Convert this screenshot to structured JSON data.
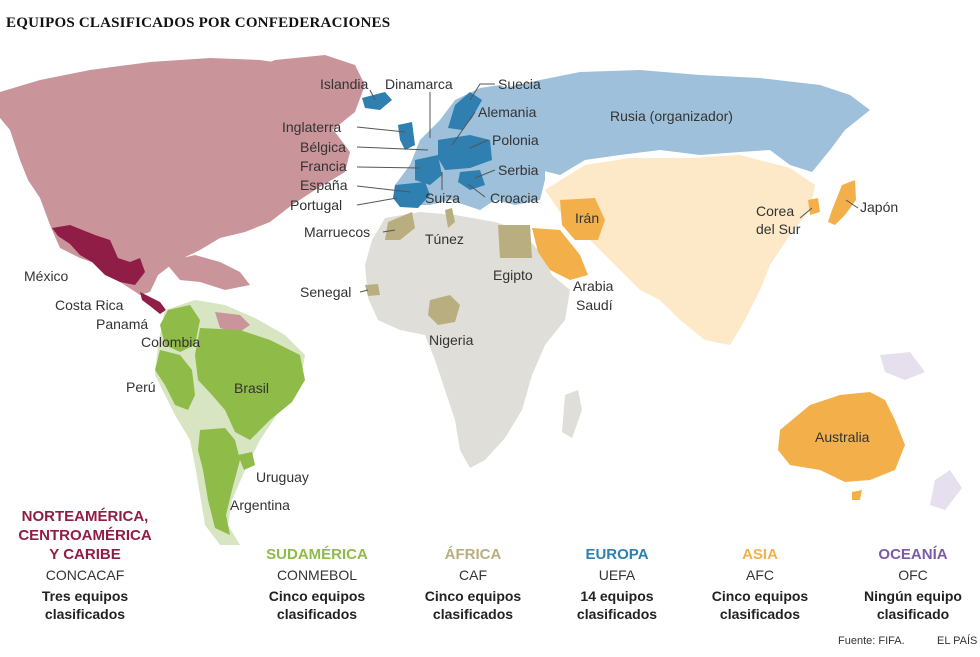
{
  "title": "EQUIPOS CLASIFICADOS POR CONFEDERACIONES",
  "colors": {
    "concacaf": "#8f1d45",
    "concacaf_region": "#c9959b",
    "conmebol": "#8fbb49",
    "conmebol_region": "#d7e5c3",
    "caf": "#b8ae80",
    "caf_region": "#e0ded8",
    "uefa": "#2f7fb0",
    "uefa_region": "#9ec0da",
    "afc": "#f3b04a",
    "afc_region": "#fde8c8",
    "ofc": "#7b5aa6",
    "ofc_region": "#e6e0ee"
  },
  "countries": {
    "islandia": "Islandia",
    "dinamarca": "Dinamarca",
    "suecia": "Suecia",
    "alemania": "Alemania",
    "rusia": "Rusia (organizador)",
    "inglaterra": "Inglaterra",
    "belgica": "Bélgica",
    "polonia": "Polonia",
    "francia": "Francia",
    "serbia": "Serbia",
    "espana": "España",
    "portugal": "Portugal",
    "suiza": "Suiza",
    "croacia": "Croacia",
    "marruecos": "Marruecos",
    "tunez": "Túnez",
    "iran": "Irán",
    "corea_line1": "Corea",
    "corea_line2": "del Sur",
    "japon": "Japón",
    "mexico": "México",
    "egipto": "Egipto",
    "costa_rica": "Costa Rica",
    "arabia_line1": "Arabia",
    "arabia_line2": "Saudí",
    "panama": "Panamá",
    "senegal": "Senegal",
    "colombia": "Colombia",
    "nigeria": "Nigeria",
    "brasil": "Brasil",
    "peru": "Perú",
    "australia": "Australia",
    "uruguay": "Uruguay",
    "argentina": "Argentina"
  },
  "confederations": {
    "concacaf": {
      "name_line1": "NORTEAMÉRICA,",
      "name_line2": "CENTROAMÉRICA",
      "name_line3": "Y CARIBE",
      "code": "CONCACAF",
      "count_line1": "Tres equipos",
      "count_line2": "clasificados"
    },
    "conmebol": {
      "name": "SUDAMÉRICA",
      "code": "CONMEBOL",
      "count_line1": "Cinco equipos",
      "count_line2": "clasificados"
    },
    "caf": {
      "name": "ÁFRICA",
      "code": "CAF",
      "count_line1": "Cinco equipos",
      "count_line2": "clasificados"
    },
    "uefa": {
      "name": "EUROPA",
      "code": "UEFA",
      "count_line1": "14 equipos",
      "count_line2": "clasificados"
    },
    "afc": {
      "name": "ASIA",
      "code": "AFC",
      "count_line1": "Cinco equipos",
      "count_line2": "clasificados"
    },
    "ofc": {
      "name": "OCEANÍA",
      "code": "OFC",
      "count_line1": "Ningún equipo",
      "count_line2": "clasificado"
    }
  },
  "source": "Fuente: FIFA.",
  "brand": "EL PAÍS"
}
